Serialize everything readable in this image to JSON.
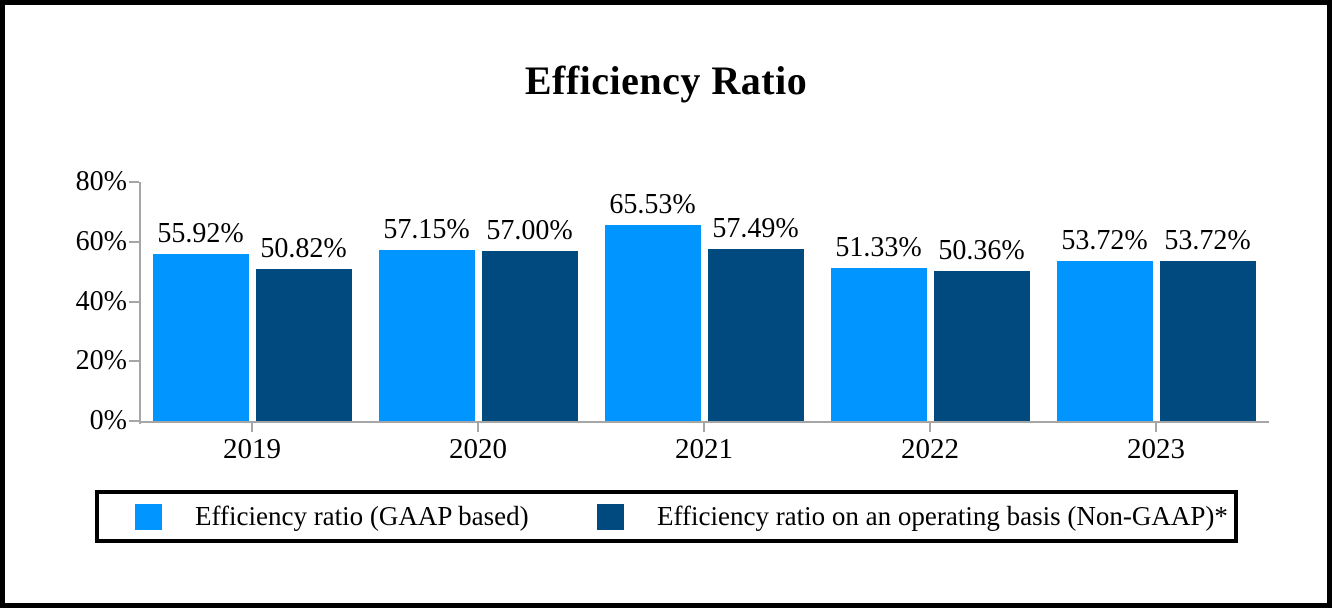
{
  "title": "Efficiency Ratio",
  "colors": {
    "series_gaap": "#0095FF",
    "series_non_gaap": "#004A7F",
    "axis": "#A6A6A6",
    "text": "#000000",
    "border": "#000000"
  },
  "chart_data": {
    "type": "bar",
    "title": "Efficiency Ratio",
    "categories": [
      "2019",
      "2020",
      "2021",
      "2022",
      "2023"
    ],
    "series": [
      {
        "name": "Efficiency ratio (GAAP based)",
        "color": "#0095FF",
        "values": [
          55.92,
          57.15,
          65.53,
          51.33,
          53.72
        ],
        "labels": [
          "55.92%",
          "57.15%",
          "65.53%",
          "51.33%",
          "53.72%"
        ]
      },
      {
        "name": "Efficiency ratio on an operating basis (Non-GAAP)*",
        "color": "#004A7F",
        "values": [
          50.82,
          57.0,
          57.49,
          50.36,
          53.72
        ],
        "labels": [
          "50.82%",
          "57.00%",
          "57.49%",
          "50.36%",
          "53.72%"
        ]
      }
    ],
    "xlabel": "",
    "ylabel": "",
    "ylim": [
      0,
      80
    ],
    "y_ticks": [
      "0%",
      "20%",
      "40%",
      "60%",
      "80%"
    ],
    "y_tick_values": [
      0,
      20,
      40,
      60,
      80
    ],
    "grid": false,
    "legend_position": "bottom"
  },
  "legend": {
    "items": [
      {
        "label": "Efficiency ratio (GAAP based)",
        "color": "#0095FF"
      },
      {
        "label": "Efficiency ratio on an operating basis (Non-GAAP)*",
        "color": "#004A7F"
      }
    ]
  }
}
